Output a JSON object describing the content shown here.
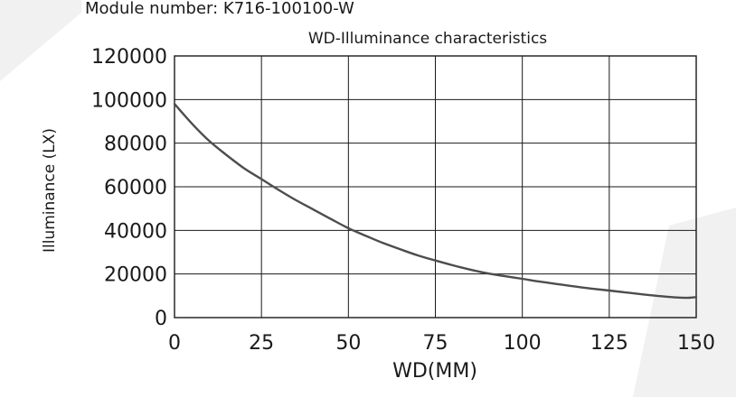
{
  "header": {
    "module_label": "Module number: K716-100100-W"
  },
  "chart_data": {
    "type": "line",
    "title": "WD-Illuminance characteristics",
    "xlabel": "WD(MM)",
    "ylabel": "Illuminance (LX)",
    "xlim": [
      0,
      150
    ],
    "ylim": [
      0,
      120000
    ],
    "x_ticks": [
      0,
      25,
      50,
      75,
      100,
      125,
      150
    ],
    "y_ticks": [
      0,
      20000,
      40000,
      60000,
      80000,
      100000,
      120000
    ],
    "x_tick_labels": [
      "0",
      "25",
      "50",
      "75",
      "100",
      "125",
      "150"
    ],
    "y_tick_labels": [
      "0",
      "20000",
      "40000",
      "60000",
      "80000",
      "100000",
      "120000"
    ],
    "grid": true,
    "series": [
      {
        "name": "Illuminance",
        "x": [
          0,
          5,
          10,
          15,
          20,
          25,
          30,
          35,
          40,
          45,
          50,
          55,
          60,
          65,
          70,
          75,
          80,
          85,
          90,
          95,
          100,
          105,
          110,
          115,
          120,
          125,
          130,
          135,
          140,
          145,
          148,
          150
        ],
        "y": [
          98000,
          89000,
          81000,
          74500,
          68500,
          63500,
          58500,
          53800,
          49500,
          45200,
          41000,
          37500,
          34200,
          31300,
          28500,
          26200,
          24000,
          22000,
          20300,
          19000,
          17800,
          16500,
          15400,
          14300,
          13300,
          12400,
          11500,
          10600,
          9800,
          9200,
          9100,
          9400
        ]
      }
    ]
  }
}
